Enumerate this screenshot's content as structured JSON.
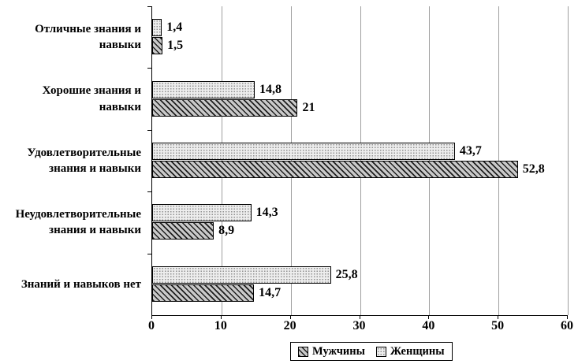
{
  "chart_data": {
    "type": "bar",
    "orientation": "horizontal",
    "title": "",
    "xlabel": "",
    "ylabel": "",
    "xlim": [
      0,
      60
    ],
    "x_tick_values": [
      0,
      10,
      20,
      30,
      40,
      50,
      60
    ],
    "x_tick_labels": [
      "0",
      "10",
      "20",
      "30",
      "40",
      "50",
      "60"
    ],
    "grid": "vertical-gridlines",
    "legend_position": "bottom-center",
    "categories": [
      "Отличные знания и навыки",
      "Хорошие знания и навыки",
      "Удовлетворительные знания и навыки",
      "Неудовлетворительные знания и навыки",
      "Знаний и навыков нет"
    ],
    "series": [
      {
        "name": "Мужчины",
        "pattern": "diagonal-hatch",
        "row_in_group": "bottom",
        "values": [
          1.5,
          21,
          52.8,
          8.9,
          14.7
        ],
        "value_labels": [
          "1,5",
          "21",
          "52,8",
          "8,9",
          "14,7"
        ]
      },
      {
        "name": "Женщины",
        "pattern": "light-dots",
        "row_in_group": "top",
        "values": [
          1.4,
          14.8,
          43.7,
          14.3,
          25.8
        ],
        "value_labels": [
          "1,4",
          "14,8",
          "43,7",
          "14,3",
          "25,8"
        ]
      }
    ],
    "colors": {
      "axis": "#000000",
      "gridline": "#a0a0a0",
      "hatch_fill": "#c9c9c9",
      "hatch_line": "#1f1f1f",
      "dots_fill": "#ededed",
      "background": "#ffffff"
    }
  }
}
